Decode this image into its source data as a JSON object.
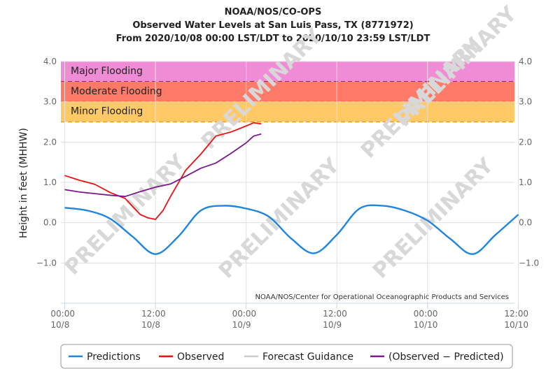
{
  "chart_data": {
    "type": "line",
    "title_lines": [
      "NOAA/NOS/CO-OPS",
      "Observed Water Levels at San Luis Pass, TX (8771972)",
      "From 2020/10/08 00:00 LST/LDT to 2020/10/10 23:59 LST/LDT"
    ],
    "ylabel": "Height in feet (MHHW)",
    "ylim": [
      -2.0,
      4.0
    ],
    "yticks": [
      "4.0",
      "3.0",
      "2.0",
      "1.0",
      "0.0",
      "−1.0"
    ],
    "ytick_values": [
      4,
      3,
      2,
      1,
      0,
      -1
    ],
    "xlim_hours": [
      -0.5,
      59.5
    ],
    "xticks": [
      {
        "time": "00:00",
        "date": "10/8",
        "hour": 0
      },
      {
        "time": "12:00",
        "date": "10/8",
        "hour": 12
      },
      {
        "time": "00:00",
        "date": "10/9",
        "hour": 24
      },
      {
        "time": "12:00",
        "date": "10/9",
        "hour": 36
      },
      {
        "time": "00:00",
        "date": "10/10",
        "hour": 48
      },
      {
        "time": "12:00",
        "date": "10/10",
        "hour": 60
      }
    ],
    "flood_zones": [
      {
        "label": "Major Flooding",
        "from": 3.5,
        "to": 4.0,
        "color": "#f08cd6",
        "line_color": "#7a1a7a"
      },
      {
        "label": "Moderate Flooding",
        "from": 3.0,
        "to": 3.5,
        "color": "#ff7a68",
        "line_color": "#dd0000"
      },
      {
        "label": "Minor Flooding",
        "from": 2.5,
        "to": 3.0,
        "color": "#ffc966",
        "line_color": "#f0a020"
      }
    ],
    "series": [
      {
        "name": "Predictions",
        "color": "#1f85de",
        "hours": [
          0,
          3,
          6,
          9,
          12,
          15,
          18,
          21,
          24,
          27,
          30,
          33,
          36,
          39,
          42,
          45,
          48,
          51,
          54,
          57,
          60
        ],
        "values": [
          0.37,
          0.3,
          0.1,
          -0.35,
          -0.78,
          -0.35,
          0.3,
          0.42,
          0.35,
          0.15,
          -0.4,
          -0.76,
          -0.3,
          0.35,
          0.42,
          0.3,
          0.05,
          -0.4,
          -0.78,
          -0.3,
          0.2
        ]
      },
      {
        "name": "Observed",
        "color": "#ee1111",
        "hours": [
          0,
          2,
          4,
          6,
          8,
          10,
          11,
          12,
          13,
          14,
          16,
          18,
          20,
          22,
          24,
          25,
          26
        ],
        "values": [
          1.17,
          1.05,
          0.95,
          0.75,
          0.6,
          0.2,
          0.12,
          0.08,
          0.3,
          0.65,
          1.3,
          1.7,
          2.15,
          2.25,
          2.4,
          2.48,
          2.45
        ]
      },
      {
        "name": "Forecast Guidance",
        "color": "#cccccc",
        "hours": [],
        "values": []
      },
      {
        "name": "(Observed − Predicted)",
        "color": "#7a1a8a",
        "hours": [
          0,
          2,
          4,
          6,
          8,
          10,
          12,
          14,
          16,
          18,
          20,
          22,
          24,
          25,
          26
        ],
        "values": [
          0.82,
          0.76,
          0.72,
          0.68,
          0.65,
          0.77,
          0.88,
          0.96,
          1.15,
          1.35,
          1.48,
          1.72,
          1.98,
          2.15,
          2.2
        ]
      }
    ],
    "legend_position": "bottom-center",
    "watermark": "PRELIMINARY",
    "credit": "NOAA/NOS/Center for Operational Oceanographic Products and Services",
    "grid": true
  }
}
